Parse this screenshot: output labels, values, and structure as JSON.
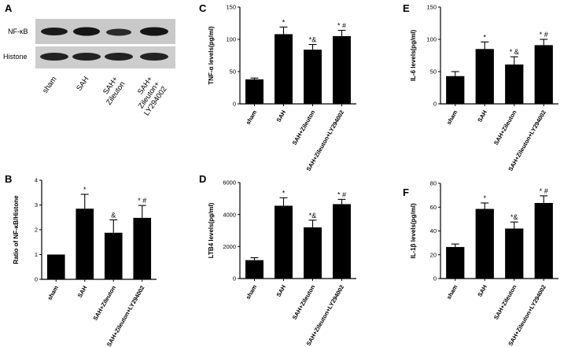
{
  "blot": {
    "letter": "A",
    "rows": [
      "NF-κB",
      "Histone"
    ],
    "lanes": [
      "sham",
      "SAH",
      "SAH+\nZileuton",
      "SAH+\nZileuton+\nLY294002"
    ]
  },
  "chart_data": [
    {
      "letter": "B",
      "type": "bar",
      "categories": [
        "sham",
        "SAH",
        "SAH+Zileuton",
        "SAH+Zileuton+LY294002"
      ],
      "values": [
        1.0,
        2.85,
        1.88,
        2.48
      ],
      "errors": [
        0,
        0.58,
        0.52,
        0.5
      ],
      "annotations": [
        "",
        "*",
        "&",
        "* #"
      ],
      "ylabel": "Ratio of NF-κB/Histone",
      "ylim": [
        0,
        4
      ],
      "yticks": [
        0,
        1,
        2,
        3,
        4
      ]
    },
    {
      "letter": "C",
      "type": "bar",
      "categories": [
        "sham",
        "SAH",
        "SAH+Zileuton",
        "SAH+Zileuton+LY294002"
      ],
      "values": [
        38,
        108,
        84,
        105
      ],
      "errors": [
        2,
        11,
        8,
        9
      ],
      "annotations": [
        "",
        "*",
        "*&",
        "* #"
      ],
      "ylabel": "TNF-α  levels(pg/ml)",
      "ylim": [
        0,
        150
      ],
      "yticks": [
        0,
        50,
        100,
        150
      ]
    },
    {
      "letter": "D",
      "type": "bar",
      "categories": [
        "sham",
        "SAH",
        "SAH+Zileuton",
        "SAH+Zileuton+LY294002"
      ],
      "values": [
        1150,
        4550,
        3200,
        4650
      ],
      "errors": [
        150,
        500,
        450,
        300
      ],
      "annotations": [
        "",
        "*",
        "*&",
        "* #"
      ],
      "ylabel": "LTB4 levels(pg/ml)",
      "ylim": [
        0,
        6000
      ],
      "yticks": [
        0,
        2000,
        4000,
        6000
      ]
    },
    {
      "letter": "E",
      "type": "bar",
      "categories": [
        "sham",
        "SAH",
        "SAH+Zileuton",
        "SAH+Zileuton+LY294002"
      ],
      "values": [
        43,
        85,
        61,
        91
      ],
      "errors": [
        7,
        11,
        12,
        9
      ],
      "annotations": [
        "",
        "*",
        "* &",
        "* #"
      ],
      "ylabel": "IL-6 levels(pg/ml)",
      "ylim": [
        0,
        150
      ],
      "yticks": [
        0,
        50,
        100,
        150
      ]
    },
    {
      "letter": "F",
      "type": "bar",
      "categories": [
        "sham",
        "SAH",
        "SAH+Zileuton",
        "SAH+Zileuton+LY294002"
      ],
      "values": [
        26.5,
        58.5,
        42,
        63.5
      ],
      "errors": [
        2.5,
        5,
        5.5,
        6
      ],
      "annotations": [
        "",
        "*",
        "*&",
        "* #"
      ],
      "ylabel": "IL-1β  levels(pg/ml)",
      "ylim": [
        0,
        80
      ],
      "yticks": [
        0,
        20,
        40,
        60,
        80
      ]
    }
  ]
}
